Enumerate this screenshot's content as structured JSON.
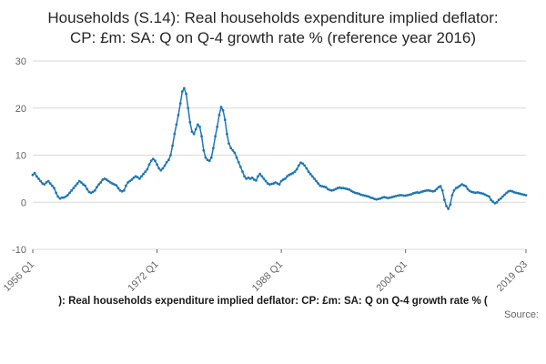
{
  "title": "Households (S.14): Real households expenditure implied deflator: CP: £m: SA: Q on Q-4 growth rate % (reference year 2016)",
  "legend_line": "): Real households expenditure implied deflator: CP: £m: SA: Q on Q-4 growth rate % (",
  "source_label": "Source:",
  "colors": {
    "line": "#1f77b4",
    "grid": "#d9d9d9",
    "axis_text": "#666666",
    "title_text": "#262626"
  },
  "chart_data": {
    "type": "line",
    "title": "Households (S.14): Real households expenditure implied deflator: CP: £m: SA: Q on Q-4 growth rate % (reference year 2016)",
    "xlabel": "",
    "ylabel": "",
    "ylim": [
      -10,
      30
    ],
    "y_ticks": [
      -10,
      0,
      10,
      20,
      30
    ],
    "grid": true,
    "legend_position": "bottom",
    "x_tick_labels": [
      "1956 Q1",
      "1972 Q1",
      "1988 Q1",
      "2004 Q1",
      "2019 Q3"
    ],
    "x_tick_indices": [
      0,
      64,
      128,
      192,
      254
    ],
    "series_name": "Q on Q-4 growth rate %",
    "x_period": "quarterly 1956 Q1 to 2019 Q3",
    "values": [
      5.8,
      6.2,
      5.5,
      5.0,
      4.5,
      4.0,
      3.8,
      4.2,
      4.5,
      4.0,
      3.5,
      3.0,
      2.0,
      1.2,
      0.8,
      1.0,
      1.0,
      1.2,
      1.5,
      2.0,
      2.5,
      3.0,
      3.5,
      4.0,
      4.5,
      4.2,
      3.8,
      3.5,
      2.8,
      2.2,
      2.0,
      2.2,
      2.5,
      3.2,
      3.8,
      4.2,
      4.8,
      5.0,
      4.8,
      4.5,
      4.2,
      4.0,
      3.8,
      3.6,
      3.0,
      2.5,
      2.3,
      2.5,
      3.5,
      4.2,
      4.5,
      4.8,
      5.2,
      5.5,
      5.3,
      5.0,
      5.5,
      6.0,
      6.5,
      7.0,
      8.0,
      8.8,
      9.2,
      8.8,
      8.0,
      7.2,
      6.8,
      7.2,
      7.8,
      8.5,
      9.0,
      10.0,
      12.0,
      14.5,
      16.5,
      18.5,
      21.0,
      23.5,
      24.2,
      23.0,
      20.0,
      17.0,
      15.0,
      14.5,
      15.5,
      16.5,
      16.0,
      14.0,
      11.0,
      9.5,
      9.0,
      8.8,
      9.5,
      11.5,
      14.0,
      16.0,
      18.5,
      20.2,
      19.5,
      17.5,
      14.5,
      12.5,
      11.5,
      11.0,
      10.5,
      9.5,
      8.5,
      7.5,
      6.5,
      5.5,
      5.0,
      5.2,
      5.0,
      5.2,
      4.8,
      4.6,
      5.5,
      6.0,
      5.5,
      5.0,
      4.5,
      4.0,
      3.8,
      3.9,
      4.0,
      4.2,
      4.0,
      3.8,
      4.5,
      4.8,
      5.0,
      5.5,
      5.8,
      6.0,
      6.2,
      6.5,
      7.0,
      7.8,
      8.4,
      8.2,
      7.8,
      7.2,
      6.5,
      6.0,
      5.5,
      5.0,
      4.5,
      4.0,
      3.5,
      3.4,
      3.3,
      3.2,
      2.8,
      2.6,
      2.5,
      2.6,
      2.8,
      3.0,
      3.1,
      3.0,
      3.0,
      2.9,
      2.8,
      2.7,
      2.4,
      2.2,
      2.0,
      1.9,
      1.8,
      1.6,
      1.5,
      1.4,
      1.3,
      1.2,
      1.0,
      0.9,
      0.7,
      0.6,
      0.7,
      0.8,
      1.0,
      1.1,
      1.0,
      0.9,
      1.0,
      1.1,
      1.2,
      1.3,
      1.4,
      1.5,
      1.5,
      1.4,
      1.4,
      1.5,
      1.6,
      1.7,
      1.9,
      2.0,
      2.1,
      2.0,
      2.2,
      2.3,
      2.4,
      2.5,
      2.5,
      2.4,
      2.3,
      2.4,
      2.8,
      3.2,
      3.4,
      2.5,
      0.5,
      -0.8,
      -1.4,
      -0.5,
      1.5,
      2.5,
      3.0,
      3.2,
      3.5,
      3.8,
      3.6,
      3.4,
      2.8,
      2.4,
      2.2,
      2.1,
      2.0,
      2.1,
      2.0,
      1.9,
      1.8,
      1.6,
      1.4,
      1.2,
      0.5,
      0.1,
      -0.2,
      0.0,
      0.5,
      0.8,
      1.2,
      1.6,
      2.0,
      2.3,
      2.4,
      2.3,
      2.1,
      2.0,
      1.9,
      1.8,
      1.7,
      1.6,
      1.5
    ]
  }
}
